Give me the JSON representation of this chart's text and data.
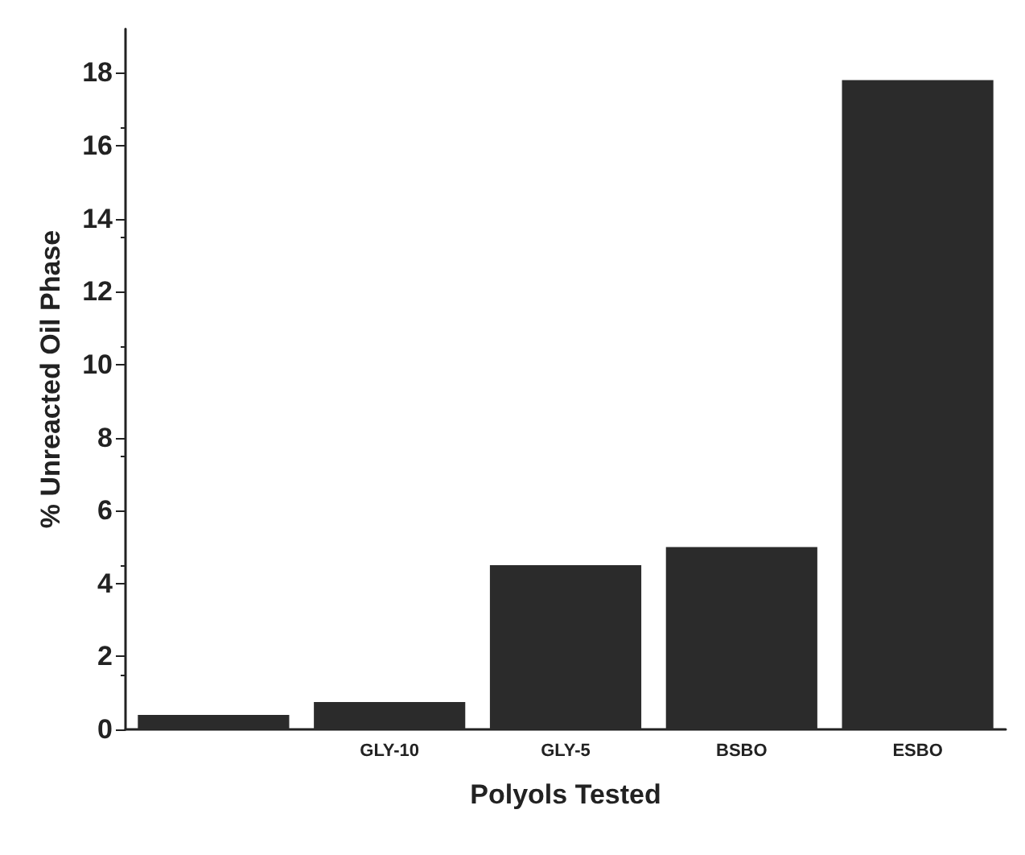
{
  "chart_data": {
    "type": "bar",
    "xlabel": "Polyols Tested",
    "ylabel": "% Unreacted Oil Phase",
    "categories": [
      null,
      "GLY-10",
      "GLY-5",
      "BSBO",
      "ESBO"
    ],
    "values": [
      0.4,
      0.75,
      4.5,
      5.0,
      17.8
    ],
    "color": "#2b2b2b",
    "ylim": [
      0,
      19.2
    ],
    "yticks": [
      0,
      2,
      4,
      6,
      8,
      10,
      12,
      14,
      16,
      18
    ],
    "grid": false
  }
}
